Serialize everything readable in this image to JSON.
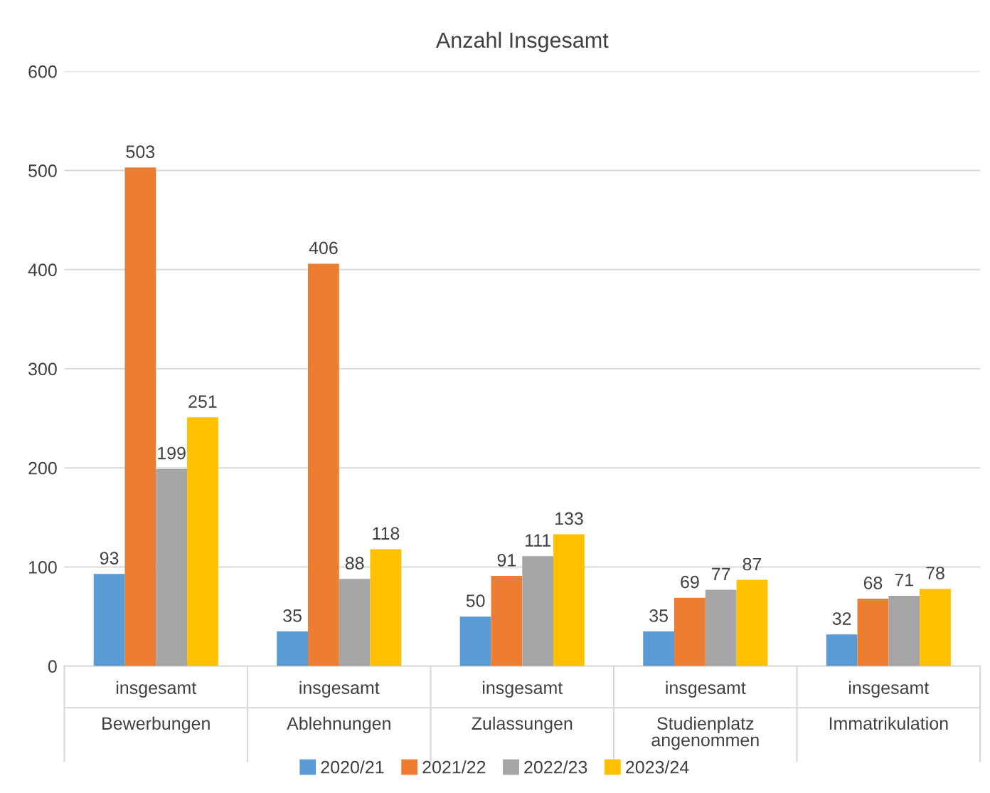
{
  "chart_data": {
    "type": "bar",
    "title": "Anzahl Insgesamt",
    "categories": [
      "insgesamt\nBewerbungen",
      "insgesamt\nAblehnungen",
      "insgesamt\nZulassungen",
      "insgesamt\nStudienplatz\nangenommen",
      "insgesamt\nImmatrikulation"
    ],
    "series": [
      {
        "name": "2020/21",
        "color": "#5b9bd5",
        "values": [
          93,
          35,
          50,
          35,
          32
        ]
      },
      {
        "name": "2021/22",
        "color": "#ed7d31",
        "values": [
          503,
          406,
          91,
          69,
          68
        ]
      },
      {
        "name": "2022/23",
        "color": "#a5a5a5",
        "values": [
          199,
          88,
          111,
          77,
          71
        ]
      },
      {
        "name": "2023/24",
        "color": "#ffc000",
        "values": [
          251,
          118,
          133,
          87,
          78
        ]
      }
    ],
    "ylim": [
      0,
      600
    ],
    "yticks": [
      0,
      100,
      200,
      300,
      400,
      500,
      600
    ],
    "grid": "y",
    "legend": "bottom",
    "data_labels": true
  }
}
